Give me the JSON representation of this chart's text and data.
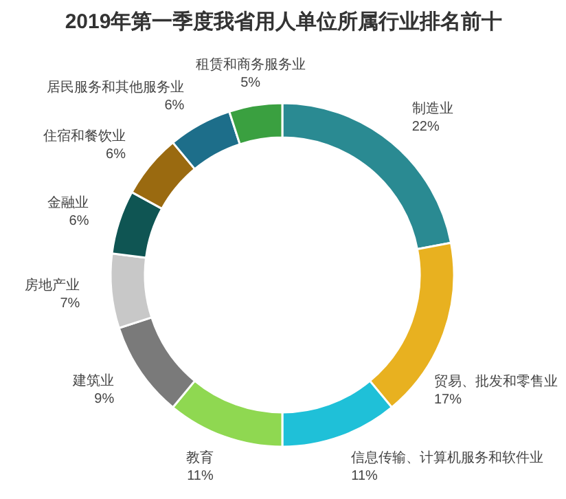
{
  "chart_data": {
    "type": "donut",
    "title": "2019年第一季度我省用人单位所属行业排名前十",
    "categories": [
      "制造业",
      "贸易、批发和零售业",
      "信息传输、计算机服务和软件业",
      "教育",
      "建筑业",
      "房地产业",
      "金融业",
      "住宿和餐饮业",
      "居民服务和其他服务业",
      "租赁和商务服务业"
    ],
    "values": [
      22,
      17,
      11,
      11,
      9,
      7,
      6,
      6,
      6,
      5
    ],
    "value_labels": [
      "22%",
      "17%",
      "11%",
      "11%",
      "9%",
      "7%",
      "6%",
      "6%",
      "6%",
      "5%"
    ],
    "colors": [
      "#2a8a92",
      "#e8b120",
      "#1fc0d8",
      "#8fd851",
      "#7a7a7a",
      "#c8c8c8",
      "#0f5553",
      "#9a6a10",
      "#1d6e8a",
      "#3aa040"
    ]
  }
}
